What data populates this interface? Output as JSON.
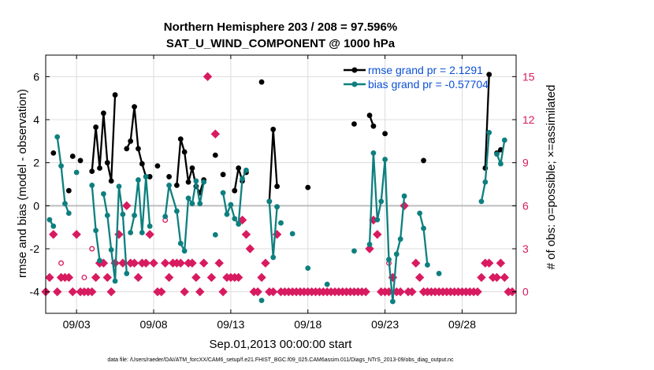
{
  "chart_data": {
    "type": "line",
    "title": "Northern Hemisphere 203 / 208 = 97.596%",
    "subtitle": "SAT_U_WIND_COMPONENT @ 1000 hPa",
    "xlabel": "Sep.01,2013 00:00:00 start",
    "ylabel": "rmse and bias (model - observation)",
    "ylabel_right": "# of obs: o=possible; ×=assimilated",
    "footnote": "data file: /Users/raeder/DAI/ATM_forcXX/CAM6_setup/f.e21.FHIST_BGC.f09_025.CAM6assim.011/Diags_NTrS_2013-09/obs_diag_output.nc",
    "xlim": [
      1,
      31.5
    ],
    "ylim": [
      -5,
      7
    ],
    "ylim_right": [
      -1.5,
      16.5
    ],
    "x_ticks": [
      3,
      8,
      13,
      18,
      23,
      28
    ],
    "x_tick_labels": [
      "09/03",
      "09/08",
      "09/13",
      "09/18",
      "09/23",
      "09/28"
    ],
    "y_ticks": [
      -4,
      -2,
      0,
      2,
      4,
      6
    ],
    "y_tick_labels": [
      "-4",
      "-2",
      "0",
      "2",
      "4",
      "6"
    ],
    "y_right_ticks": [
      0,
      3,
      6,
      9,
      12,
      15
    ],
    "y_right_tick_labels": [
      "0",
      "3",
      "6",
      "9",
      "12",
      "15"
    ],
    "colors": {
      "rmse": "#000000",
      "bias": "#0e7f7f",
      "obs": "#d81b60",
      "zero_line": "#bdbdbd",
      "grid": "#dcdcdc",
      "legend_text": "#0a4fd6"
    },
    "series": [
      {
        "name": "rmse grand pr = 2.1291",
        "color": "#000000",
        "segments": [
          [
            [
              1.5,
              2.45
            ]
          ],
          [
            [
              2.5,
              0.7
            ]
          ],
          [
            [
              2.75,
              2.3
            ]
          ],
          [
            [
              3.25,
              2.1
            ]
          ],
          [
            [
              4.0,
              1.6
            ],
            [
              4.25,
              3.65
            ],
            [
              4.5,
              1.75
            ],
            [
              4.75,
              4.3
            ],
            [
              5.0,
              2.0
            ],
            [
              5.25,
              1.15
            ],
            [
              5.5,
              5.15
            ]
          ],
          [
            [
              6.25,
              2.65
            ],
            [
              6.5,
              3.0
            ],
            [
              6.75,
              4.6
            ],
            [
              7.0,
              2.65
            ],
            [
              7.25,
              1.95
            ],
            [
              7.5,
              1.35
            ],
            [
              7.75,
              1.35
            ]
          ],
          [
            [
              8.25,
              1.85
            ]
          ],
          [
            [
              9.0,
              1.35
            ]
          ],
          [
            [
              9.5,
              0.95
            ],
            [
              9.75,
              3.1
            ],
            [
              10.0,
              2.5
            ],
            [
              10.25,
              1.1
            ],
            [
              10.5,
              1.75
            ],
            [
              10.75,
              0.9
            ],
            [
              11.0,
              0.6
            ],
            [
              11.25,
              1.2
            ]
          ],
          [
            [
              12.0,
              2.35
            ]
          ],
          [
            [
              12.5,
              1.45
            ]
          ],
          [
            [
              13.25,
              0.7
            ],
            [
              13.5,
              1.75
            ],
            [
              13.75,
              1.15
            ]
          ],
          [
            [
              14.0,
              1.55
            ]
          ],
          [
            [
              15.0,
              5.75
            ]
          ],
          [
            [
              15.5,
              0.2
            ],
            [
              15.75,
              3.55
            ],
            [
              16.0,
              0.9
            ]
          ],
          [
            [
              18.0,
              0.85
            ]
          ],
          [
            [
              21.0,
              3.8
            ]
          ],
          [
            [
              22.0,
              4.2
            ],
            [
              22.25,
              3.7
            ]
          ],
          [
            [
              23.0,
              3.35
            ]
          ],
          [
            [
              25.5,
              2.1
            ]
          ],
          [
            [
              29.5,
              1.75
            ],
            [
              29.75,
              6.1
            ]
          ],
          [
            [
              30.25,
              2.45
            ],
            [
              30.5,
              2.6
            ]
          ]
        ]
      },
      {
        "name": "bias grand pr = -0.57704",
        "color": "#0e7f7f",
        "segments": [
          [
            [
              1.25,
              -0.65
            ],
            [
              1.5,
              -0.95
            ]
          ],
          [
            [
              1.75,
              3.2
            ],
            [
              2.0,
              1.85
            ],
            [
              2.25,
              0.1
            ],
            [
              2.5,
              -0.35
            ]
          ],
          [
            [
              3.0,
              1.55
            ]
          ],
          [
            [
              4.0,
              0.95
            ],
            [
              4.25,
              -1.15
            ],
            [
              4.5,
              -2.55
            ]
          ],
          [
            [
              4.75,
              0.55
            ],
            [
              5.0,
              -0.45
            ],
            [
              5.25,
              -2.05
            ],
            [
              5.5,
              -3.5
            ],
            [
              5.75,
              0.9
            ],
            [
              6.0,
              -0.4
            ],
            [
              6.25,
              -3.15
            ]
          ],
          [
            [
              6.5,
              -1.25
            ],
            [
              6.75,
              -0.45
            ],
            [
              7.0,
              1.2
            ],
            [
              7.25,
              -1.25
            ],
            [
              7.5,
              1.35
            ],
            [
              7.75,
              -0.95
            ]
          ],
          [
            [
              8.75,
              -0.5
            ],
            [
              9.0,
              0.95
            ],
            [
              9.5,
              -0.25
            ],
            [
              9.75,
              -1.75
            ],
            [
              10.0,
              -2.1
            ],
            [
              10.25,
              0.35
            ],
            [
              10.5,
              0.1
            ],
            [
              10.75,
              1.15
            ],
            [
              11.0,
              0.1
            ],
            [
              11.25,
              1.1
            ]
          ],
          [
            [
              12.0,
              -1.35
            ]
          ],
          [
            [
              12.5,
              0.6
            ],
            [
              12.75,
              -0.4
            ],
            [
              13.0,
              0.05
            ],
            [
              13.25,
              -0.6
            ],
            [
              13.5,
              -0.85
            ],
            [
              13.75,
              1.25
            ],
            [
              14.0,
              1.65
            ]
          ],
          [
            [
              15.0,
              -4.4
            ]
          ],
          [
            [
              15.5,
              0.2
            ],
            [
              15.75,
              -2.4
            ],
            [
              16.0,
              -0.05
            ]
          ],
          [
            [
              16.25,
              -0.8
            ]
          ],
          [
            [
              17.0,
              -1.3
            ]
          ],
          [
            [
              18.0,
              -2.9
            ]
          ],
          [
            [
              19.25,
              -3.65
            ]
          ],
          [
            [
              21.0,
              -2.1
            ]
          ],
          [
            [
              22.0,
              -1.8
            ],
            [
              22.25,
              2.45
            ],
            [
              22.5,
              -0.65
            ],
            [
              22.75,
              0.2
            ],
            [
              23.0,
              2.15
            ],
            [
              23.25,
              -2.5
            ],
            [
              23.5,
              -4.45
            ],
            [
              23.75,
              -2.25
            ],
            [
              24.0,
              -1.55
            ],
            [
              24.25,
              0.45
            ]
          ],
          [
            [
              25.25,
              -0.35
            ],
            [
              25.5,
              -1.05
            ],
            [
              25.75,
              -2.75
            ]
          ],
          [
            [
              26.5,
              -3.15
            ]
          ],
          [
            [
              29.25,
              0.2
            ],
            [
              29.5,
              1.1
            ],
            [
              29.75,
              3.4
            ]
          ],
          [
            [
              30.25,
              2.4
            ],
            [
              30.5,
              1.95
            ],
            [
              30.75,
              3.05
            ]
          ]
        ]
      },
      {
        "name": "obs assimilated",
        "color": "#d81b60",
        "marker": "x",
        "axis": "right",
        "points": [
          [
            1.0,
            0
          ],
          [
            1.25,
            1
          ],
          [
            1.5,
            4
          ],
          [
            1.75,
            0
          ],
          [
            2.0,
            1
          ],
          [
            2.25,
            1
          ],
          [
            2.5,
            1
          ],
          [
            2.75,
            0
          ],
          [
            3.0,
            4
          ],
          [
            3.25,
            0
          ],
          [
            3.5,
            0
          ],
          [
            3.75,
            0
          ],
          [
            4.0,
            0
          ],
          [
            4.25,
            1
          ],
          [
            4.5,
            2
          ],
          [
            4.75,
            2
          ],
          [
            5.0,
            1
          ],
          [
            5.25,
            0
          ],
          [
            5.5,
            2
          ],
          [
            5.75,
            4
          ],
          [
            6.0,
            2
          ],
          [
            6.25,
            6
          ],
          [
            6.5,
            2
          ],
          [
            6.75,
            2
          ],
          [
            7.0,
            1
          ],
          [
            7.25,
            2
          ],
          [
            7.5,
            2
          ],
          [
            7.75,
            4
          ],
          [
            8.0,
            2
          ],
          [
            8.25,
            0
          ],
          [
            8.5,
            0
          ],
          [
            8.75,
            2
          ],
          [
            9.0,
            1
          ],
          [
            9.25,
            2
          ],
          [
            9.5,
            2
          ],
          [
            9.75,
            2
          ],
          [
            10.0,
            0
          ],
          [
            10.25,
            2
          ],
          [
            10.5,
            2
          ],
          [
            10.75,
            1
          ],
          [
            11.0,
            0
          ],
          [
            11.25,
            2
          ],
          [
            11.5,
            15
          ],
          [
            11.75,
            1
          ],
          [
            12.0,
            11
          ],
          [
            12.25,
            2
          ],
          [
            12.5,
            0
          ],
          [
            12.75,
            1
          ],
          [
            13.0,
            1
          ],
          [
            13.25,
            1
          ],
          [
            13.5,
            1
          ],
          [
            13.75,
            5
          ],
          [
            14.0,
            4
          ],
          [
            14.25,
            3
          ],
          [
            14.5,
            0
          ],
          [
            14.75,
            0
          ],
          [
            15.0,
            1
          ],
          [
            15.25,
            2
          ],
          [
            15.5,
            0
          ],
          [
            15.75,
            0
          ],
          [
            16.0,
            4
          ],
          [
            16.25,
            0
          ],
          [
            16.5,
            0
          ],
          [
            16.75,
            0
          ],
          [
            17.0,
            0
          ],
          [
            17.25,
            0
          ],
          [
            17.5,
            0
          ],
          [
            17.75,
            0
          ],
          [
            18.0,
            0
          ],
          [
            18.25,
            0
          ],
          [
            18.5,
            0
          ],
          [
            18.75,
            0
          ],
          [
            19.0,
            0
          ],
          [
            19.25,
            0
          ],
          [
            19.5,
            0
          ],
          [
            19.75,
            0
          ],
          [
            20.0,
            0
          ],
          [
            20.25,
            0
          ],
          [
            20.5,
            0
          ],
          [
            20.75,
            0
          ],
          [
            21.0,
            0
          ],
          [
            21.25,
            0
          ],
          [
            21.5,
            0
          ],
          [
            21.75,
            0
          ],
          [
            22.0,
            3
          ],
          [
            22.25,
            5
          ],
          [
            22.5,
            4
          ],
          [
            22.75,
            0
          ],
          [
            23.0,
            0
          ],
          [
            23.25,
            0
          ],
          [
            23.5,
            1
          ],
          [
            23.75,
            0
          ],
          [
            24.0,
            0
          ],
          [
            24.25,
            6
          ],
          [
            24.5,
            0
          ],
          [
            24.75,
            0
          ],
          [
            25.0,
            2
          ],
          [
            25.25,
            1
          ],
          [
            25.5,
            0
          ],
          [
            25.75,
            0
          ],
          [
            26.0,
            0
          ],
          [
            26.25,
            0
          ],
          [
            26.5,
            0
          ],
          [
            26.75,
            0
          ],
          [
            27.0,
            0
          ],
          [
            27.25,
            0
          ],
          [
            27.5,
            0
          ],
          [
            27.75,
            0
          ],
          [
            28.0,
            0
          ],
          [
            28.25,
            0
          ],
          [
            28.5,
            0
          ],
          [
            28.75,
            0
          ],
          [
            29.0,
            0
          ],
          [
            29.25,
            1
          ],
          [
            29.5,
            2
          ],
          [
            29.75,
            2
          ],
          [
            30.0,
            1
          ],
          [
            30.25,
            1
          ],
          [
            30.5,
            2
          ],
          [
            30.75,
            1
          ],
          [
            31.0,
            0
          ],
          [
            31.25,
            0
          ]
        ]
      },
      {
        "name": "obs possible",
        "color": "#d81b60",
        "marker": "o",
        "axis": "right",
        "points": [
          [
            2.0,
            2
          ],
          [
            3.5,
            1
          ],
          [
            4.0,
            3
          ],
          [
            8.75,
            5
          ],
          [
            23.25,
            2
          ]
        ]
      }
    ],
    "legend": [
      {
        "label": "rmse grand pr = 2.1291",
        "color": "#000000"
      },
      {
        "label": "bias grand pr = -0.57704",
        "color": "#0e7f7f"
      }
    ]
  }
}
